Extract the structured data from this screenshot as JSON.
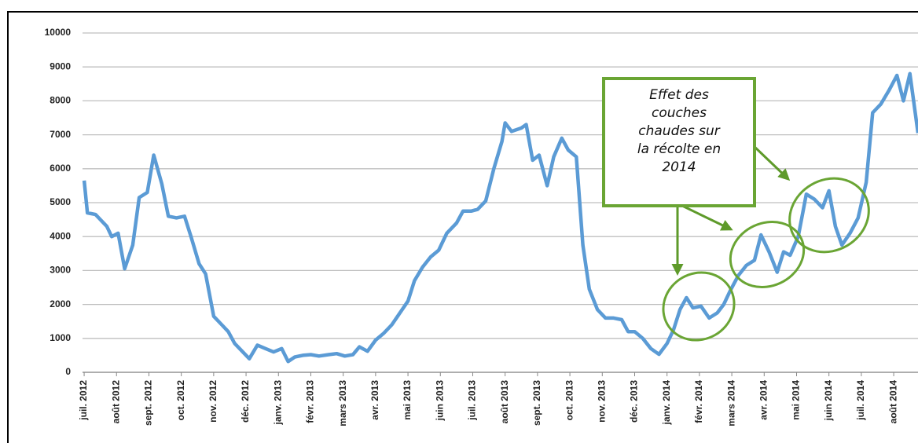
{
  "chart_data": {
    "type": "line",
    "xlim": [
      -0.05,
      25.75
    ],
    "xticks": [
      {
        "value": 0,
        "label": "juil. 2012"
      },
      {
        "value": 1,
        "label": "août 2012"
      },
      {
        "value": 2,
        "label": "sept. 2012"
      },
      {
        "value": 3,
        "label": "oct. 2012"
      },
      {
        "value": 4,
        "label": "nov. 2012"
      },
      {
        "value": 5,
        "label": "déc. 2012"
      },
      {
        "value": 6,
        "label": "janv. 2013"
      },
      {
        "value": 7,
        "label": "févr. 2013"
      },
      {
        "value": 8,
        "label": "mars 2013"
      },
      {
        "value": 9,
        "label": "avr. 2013"
      },
      {
        "value": 10,
        "label": "mai 2013"
      },
      {
        "value": 11,
        "label": "juin 2013"
      },
      {
        "value": 12,
        "label": "juil. 2013"
      },
      {
        "value": 13,
        "label": "août 2013"
      },
      {
        "value": 14,
        "label": "sept. 2013"
      },
      {
        "value": 15,
        "label": "oct. 2013"
      },
      {
        "value": 16,
        "label": "nov. 2013"
      },
      {
        "value": 17,
        "label": "déc. 2013"
      },
      {
        "value": 18,
        "label": "janv. 2014"
      },
      {
        "value": 19,
        "label": "févr. 2014"
      },
      {
        "value": 20,
        "label": "mars 2014"
      },
      {
        "value": 21,
        "label": "avr. 2014"
      },
      {
        "value": 22,
        "label": "mai 2014"
      },
      {
        "value": 23,
        "label": "juin 2014"
      },
      {
        "value": 24,
        "label": "juil. 2014"
      },
      {
        "value": 25,
        "label": "août 2014"
      }
    ],
    "ylim": [
      0,
      10000
    ],
    "yticks": [
      0,
      1000,
      2000,
      3000,
      4000,
      5000,
      6000,
      7000,
      8000,
      9000,
      10000
    ],
    "grid": true,
    "x": [
      0,
      0.1,
      0.35,
      0.7,
      0.85,
      1.05,
      1.25,
      1.5,
      1.7,
      1.95,
      2.15,
      2.4,
      2.6,
      2.85,
      3.1,
      3.3,
      3.55,
      3.75,
      4.0,
      4.25,
      4.45,
      4.65,
      4.85,
      5.1,
      5.35,
      5.6,
      5.85,
      6.1,
      6.3,
      6.5,
      6.75,
      7.0,
      7.25,
      7.55,
      7.8,
      8.05,
      8.3,
      8.5,
      8.75,
      9.0,
      9.25,
      9.5,
      9.75,
      10.0,
      10.2,
      10.45,
      10.7,
      10.95,
      11.2,
      11.5,
      11.7,
      11.95,
      12.15,
      12.4,
      12.65,
      12.9,
      13.0,
      13.2,
      13.5,
      13.65,
      13.85,
      14.05,
      14.3,
      14.5,
      14.75,
      14.95,
      15.2,
      15.4,
      15.6,
      15.85,
      16.1,
      16.35,
      16.6,
      16.8,
      17.0,
      17.25,
      17.5,
      17.75,
      18.0,
      18.2,
      18.4,
      18.6,
      18.8,
      19.05,
      19.3,
      19.55,
      19.75,
      19.95,
      20.2,
      20.45,
      20.7,
      20.9,
      21.15,
      21.4,
      21.6,
      21.8,
      22.05,
      22.3,
      22.55,
      22.8,
      23.0,
      23.2,
      23.4,
      23.65,
      23.9,
      24.15,
      24.35,
      24.6,
      24.85,
      25.1,
      25.3,
      25.5,
      25.75
    ],
    "series": [
      {
        "color": "#5b9bd5",
        "values": [
          5650,
          4700,
          4650,
          4300,
          4000,
          4100,
          3050,
          3750,
          5150,
          5300,
          6400,
          5550,
          4600,
          4550,
          4600,
          4000,
          3200,
          2900,
          1650,
          1400,
          1200,
          850,
          650,
          400,
          800,
          700,
          600,
          700,
          320,
          450,
          500,
          520,
          480,
          520,
          550,
          480,
          520,
          750,
          620,
          950,
          1150,
          1400,
          1750,
          2100,
          2700,
          3100,
          3400,
          3600,
          4100,
          4400,
          4750,
          4750,
          4800,
          5050,
          6000,
          6800,
          7350,
          7100,
          7200,
          7300,
          6250,
          6400,
          5500,
          6350,
          6900,
          6550,
          6350,
          3750,
          2450,
          1850,
          1600,
          1600,
          1550,
          1200,
          1200,
          1000,
          700,
          530,
          850,
          1250,
          1850,
          2200,
          1900,
          1950,
          1600,
          1750,
          2000,
          2400,
          2850,
          3150,
          3300,
          4050,
          3550,
          2950,
          3550,
          3450,
          4000,
          5250,
          5100,
          4850,
          5350,
          4300,
          3750,
          4100,
          4550,
          5600,
          7650,
          7900,
          8300,
          8750,
          8000,
          8800,
          7050
        ]
      }
    ],
    "annotation": [
      "Effet des",
      "couches",
      "chaudes sur",
      "la récolte en",
      "2014"
    ]
  }
}
